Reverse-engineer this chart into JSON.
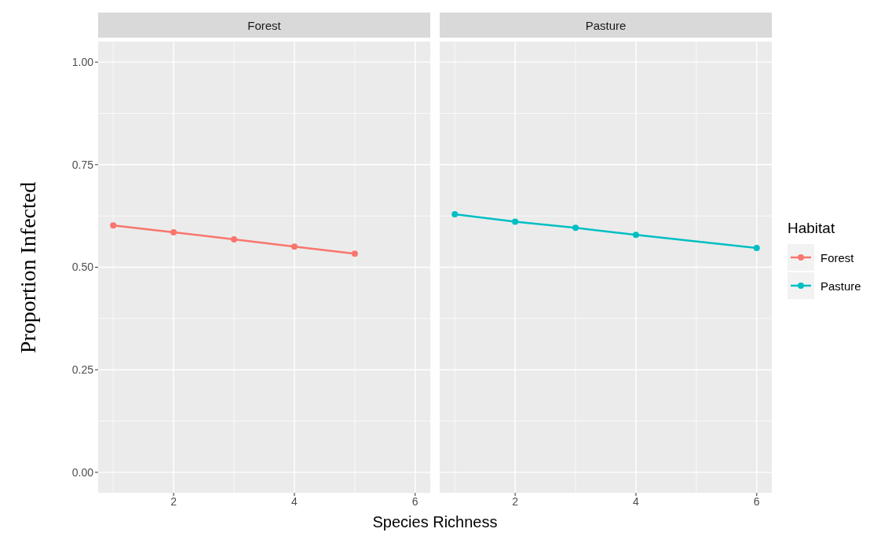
{
  "chart_data": [
    {
      "type": "line",
      "title": "Forest",
      "ylabel": "Proportion Infected",
      "xlabel": "Species Richness",
      "x": [
        1,
        2,
        3,
        4,
        5
      ],
      "xlim": [
        0.75,
        6.25
      ],
      "xticks": [
        2,
        4,
        6
      ],
      "ylim": [
        -0.05,
        1.05
      ],
      "yticks": [
        {
          "value": 0,
          "label": "0.00"
        },
        {
          "value": 0.25,
          "label": "0.25"
        },
        {
          "value": 0.5,
          "label": "0.50"
        },
        {
          "value": 0.75,
          "label": "0.75"
        },
        {
          "value": 1,
          "label": "1.00"
        }
      ],
      "grid": true,
      "marker": "circle",
      "series": [
        {
          "name": "Forest",
          "color": "#f8766d",
          "values": [
            0.602,
            0.585,
            0.568,
            0.55,
            0.533
          ]
        }
      ]
    },
    {
      "type": "line",
      "title": "Pasture",
      "x": [
        1,
        2,
        3,
        4,
        6
      ],
      "xlim": [
        0.75,
        6.25
      ],
      "xticks": [
        2,
        4,
        6
      ],
      "ylim": [
        -0.05,
        1.05
      ],
      "yticks": [
        0,
        0.25,
        0.5,
        0.75,
        1
      ],
      "grid": true,
      "marker": "circle",
      "tick_labels": "x",
      "legend": "right",
      "legend_title": "Habitat",
      "series": [
        {
          "name": "Pasture",
          "color": "#00bfc4",
          "values": [
            0.629,
            0.611,
            0.596,
            0.579,
            0.547
          ]
        }
      ]
    }
  ]
}
